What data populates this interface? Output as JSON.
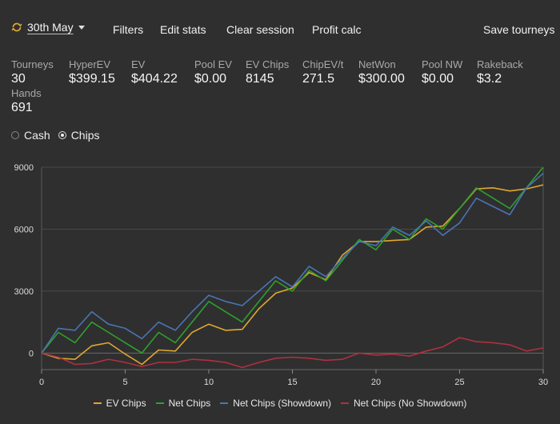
{
  "toolbar": {
    "date_label": "30th May",
    "filters": "Filters",
    "edit_stats": "Edit stats",
    "clear_session": "Clear session",
    "profit_calc": "Profit calc",
    "save_tourneys": "Save tourneys"
  },
  "stats": [
    {
      "label": "Tourneys",
      "value": "30"
    },
    {
      "label": "HyperEV",
      "value": "$399.15"
    },
    {
      "label": "EV",
      "value": "$404.22"
    },
    {
      "label": "Pool EV",
      "value": "$0.00"
    },
    {
      "label": "EV Chips",
      "value": "8145"
    },
    {
      "label": "ChipEV/t",
      "value": "271.5"
    },
    {
      "label": "NetWon",
      "value": "$300.00"
    },
    {
      "label": "Pool NW",
      "value": "$0.00"
    },
    {
      "label": "Rakeback",
      "value": "$3.2"
    },
    {
      "label": "Hands",
      "value": "691"
    }
  ],
  "view_mode": {
    "options": [
      "Cash",
      "Chips"
    ],
    "selected": "Chips"
  },
  "colors": {
    "ev": "#e0a82e",
    "net": "#2ea02e",
    "showdown": "#4a74b4",
    "no_showdown": "#b03040"
  },
  "chart_data": {
    "type": "line",
    "x": [
      0,
      1,
      2,
      3,
      4,
      5,
      6,
      7,
      8,
      9,
      10,
      11,
      12,
      13,
      14,
      15,
      16,
      17,
      18,
      19,
      20,
      21,
      22,
      23,
      24,
      25,
      26,
      27,
      28,
      29,
      30
    ],
    "xticks": [
      0,
      5,
      10,
      15,
      20,
      25,
      30
    ],
    "yticks": [
      0,
      3000,
      6000,
      9000
    ],
    "ylim": [
      -800,
      9000
    ],
    "xlim": [
      0,
      30
    ],
    "grid": true,
    "legend_position": "bottom",
    "series": [
      {
        "name": "EV Chips",
        "color": "#e0a82e",
        "values": [
          0,
          -250,
          -300,
          350,
          500,
          -50,
          -550,
          150,
          100,
          1000,
          1400,
          1100,
          1150,
          2150,
          2900,
          3150,
          3900,
          3550,
          4750,
          5400,
          5400,
          5450,
          5500,
          6100,
          6150,
          7000,
          7950,
          8000,
          7850,
          7950,
          8145
        ]
      },
      {
        "name": "Net Chips",
        "color": "#2ea02e",
        "values": [
          0,
          1000,
          500,
          1500,
          1000,
          500,
          0,
          1000,
          500,
          1500,
          2500,
          2000,
          1500,
          2500,
          3500,
          3000,
          4000,
          3500,
          4500,
          5500,
          5000,
          6000,
          5500,
          6500,
          6000,
          7000,
          8000,
          7500,
          7000,
          8000,
          9000
        ]
      },
      {
        "name": "Net Chips (Showdown)",
        "color": "#4a74b4",
        "values": [
          0,
          1200,
          1100,
          2000,
          1400,
          1200,
          700,
          1500,
          1100,
          2000,
          2800,
          2500,
          2300,
          3000,
          3700,
          3200,
          4200,
          3700,
          4600,
          5400,
          5200,
          6100,
          5700,
          6400,
          5700,
          6300,
          7500,
          7100,
          6700,
          8000,
          8700
        ]
      },
      {
        "name": "Net Chips (No Showdown)",
        "color": "#b03040",
        "values": [
          0,
          -200,
          -550,
          -500,
          -300,
          -450,
          -650,
          -450,
          -450,
          -300,
          -350,
          -450,
          -700,
          -450,
          -250,
          -200,
          -250,
          -350,
          -300,
          0,
          -100,
          -50,
          -150,
          100,
          300,
          750,
          550,
          500,
          400,
          100,
          250
        ]
      }
    ]
  }
}
